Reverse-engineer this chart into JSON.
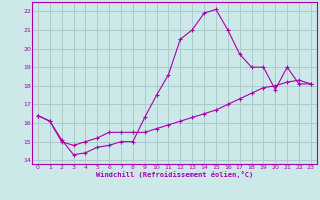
{
  "title": "",
  "xlabel": "Windchill (Refroidissement éolien,°C)",
  "ylabel": "",
  "bg_color": "#cce8e8",
  "grid_color": "#aacccc",
  "line_color": "#aa00aa",
  "xlim": [
    -0.5,
    23.5
  ],
  "ylim": [
    13.8,
    22.5
  ],
  "yticks": [
    14,
    15,
    16,
    17,
    18,
    19,
    20,
    21,
    22
  ],
  "xticks": [
    0,
    1,
    2,
    3,
    4,
    5,
    6,
    7,
    8,
    9,
    10,
    11,
    12,
    13,
    14,
    15,
    16,
    17,
    18,
    19,
    20,
    21,
    22,
    23
  ],
  "line1_x": [
    0,
    1,
    2,
    3,
    4,
    5,
    6,
    7,
    8,
    9,
    10,
    11,
    12,
    13,
    14,
    15,
    16,
    17,
    18,
    19,
    20,
    21,
    22,
    23
  ],
  "line1_y": [
    16.4,
    16.1,
    15.1,
    14.3,
    14.4,
    14.7,
    14.8,
    15.0,
    15.0,
    16.3,
    17.5,
    18.6,
    20.5,
    21.0,
    21.9,
    22.1,
    21.0,
    19.7,
    19.0,
    19.0,
    17.8,
    19.0,
    18.1,
    18.1
  ],
  "line2_x": [
    0,
    1,
    2,
    3,
    4,
    5,
    6,
    7,
    8,
    9,
    10,
    11,
    12,
    13,
    14,
    15,
    16,
    17,
    18,
    19,
    20,
    21,
    22,
    23
  ],
  "line2_y": [
    16.4,
    16.1,
    15.0,
    14.8,
    15.0,
    15.2,
    15.5,
    15.5,
    15.5,
    15.5,
    15.7,
    15.9,
    16.1,
    16.3,
    16.5,
    16.7,
    17.0,
    17.3,
    17.6,
    17.9,
    18.0,
    18.2,
    18.3,
    18.1
  ]
}
